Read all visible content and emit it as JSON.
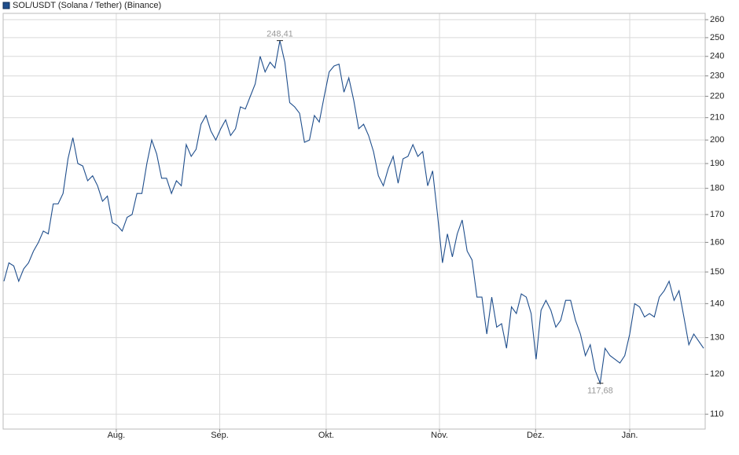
{
  "chart_data": {
    "type": "line",
    "log_scale": true,
    "grid": true,
    "ylim": [
      106.5,
      263.6
    ],
    "yticks": [
      110,
      120,
      130,
      140,
      150,
      160,
      170,
      180,
      190,
      200,
      210,
      220,
      230,
      240,
      250,
      260
    ],
    "xlim": [
      0,
      142
    ],
    "xticks": [
      {
        "value": 22.8,
        "label": "Aug."
      },
      {
        "value": 43.8,
        "label": "Sep."
      },
      {
        "value": 65.4,
        "label": "Okt."
      },
      {
        "value": 88.4,
        "label": "Nov."
      },
      {
        "value": 107.9,
        "label": "Dez."
      },
      {
        "value": 127,
        "label": "Jan."
      }
    ],
    "series": [
      {
        "name": "SOL/USDT (Solana / Tether) (Binance)",
        "color": "#1f4e8c",
        "values": [
          147,
          153,
          152,
          147,
          151,
          153,
          157,
          160,
          164,
          163,
          174,
          174,
          178,
          192,
          201,
          190,
          189,
          183,
          185,
          181,
          175,
          177,
          167,
          166,
          164,
          169,
          170,
          178,
          178,
          190,
          200,
          194,
          184,
          184,
          178,
          183,
          181,
          198,
          193,
          196,
          207,
          211,
          204,
          200,
          205,
          209,
          202,
          205,
          215,
          214,
          220,
          226,
          240,
          232,
          237,
          234,
          248.41,
          237,
          217,
          215,
          212,
          199,
          200,
          211,
          208,
          220,
          232,
          235,
          236,
          222,
          229,
          218,
          205,
          207,
          202,
          195,
          185,
          181,
          188,
          193,
          182,
          192,
          193,
          198,
          193,
          195,
          181,
          187,
          170,
          153,
          163,
          155,
          163,
          168,
          157,
          154,
          142,
          142,
          131,
          142,
          133,
          134,
          127,
          139,
          137,
          143,
          142,
          137,
          124,
          138,
          141,
          138,
          133,
          135,
          141,
          141,
          135,
          131,
          125,
          128,
          121,
          117.68,
          127,
          125,
          124,
          123,
          125,
          131,
          140,
          139,
          136,
          137,
          136,
          142,
          144,
          147,
          141,
          144,
          136,
          128,
          131,
          129,
          127
        ]
      }
    ],
    "annotations": [
      {
        "label": "248,41",
        "value": 248.41
      },
      {
        "label": "117,68",
        "value": 117.68
      }
    ]
  }
}
